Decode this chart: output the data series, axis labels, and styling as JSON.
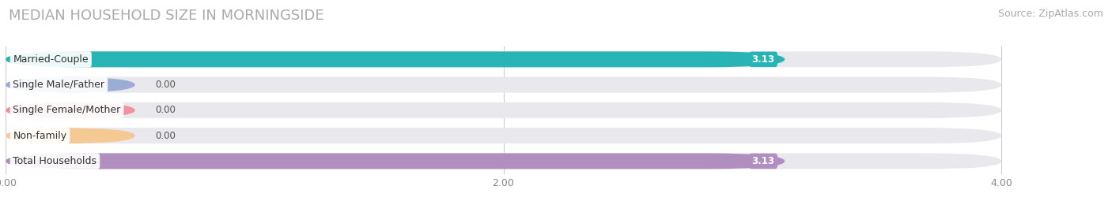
{
  "title": "MEDIAN HOUSEHOLD SIZE IN MORNINGSIDE",
  "source": "Source: ZipAtlas.com",
  "categories": [
    "Married-Couple",
    "Single Male/Father",
    "Single Female/Mother",
    "Non-family",
    "Total Households"
  ],
  "values": [
    3.13,
    0.0,
    0.0,
    0.0,
    3.13
  ],
  "bar_colors": [
    "#28b4b4",
    "#9badd4",
    "#f0919b",
    "#f5c993",
    "#b08ec0"
  ],
  "bar_bg_color": "#e8e8ed",
  "value_label_colors": [
    "#ffffff",
    "#555555",
    "#555555",
    "#555555",
    "#ffffff"
  ],
  "xlim": [
    0,
    4.4
  ],
  "data_max": 4.0,
  "xticks": [
    0.0,
    2.0,
    4.0
  ],
  "xtick_labels": [
    "0.00",
    "2.00",
    "4.00"
  ],
  "title_fontsize": 13,
  "source_fontsize": 9,
  "bar_label_fontsize": 9,
  "value_fontsize": 8.5,
  "tick_fontsize": 9,
  "fig_bg_color": "#ffffff",
  "axes_bg_color": "#ffffff",
  "bar_height": 0.62,
  "bar_gap": 0.38
}
